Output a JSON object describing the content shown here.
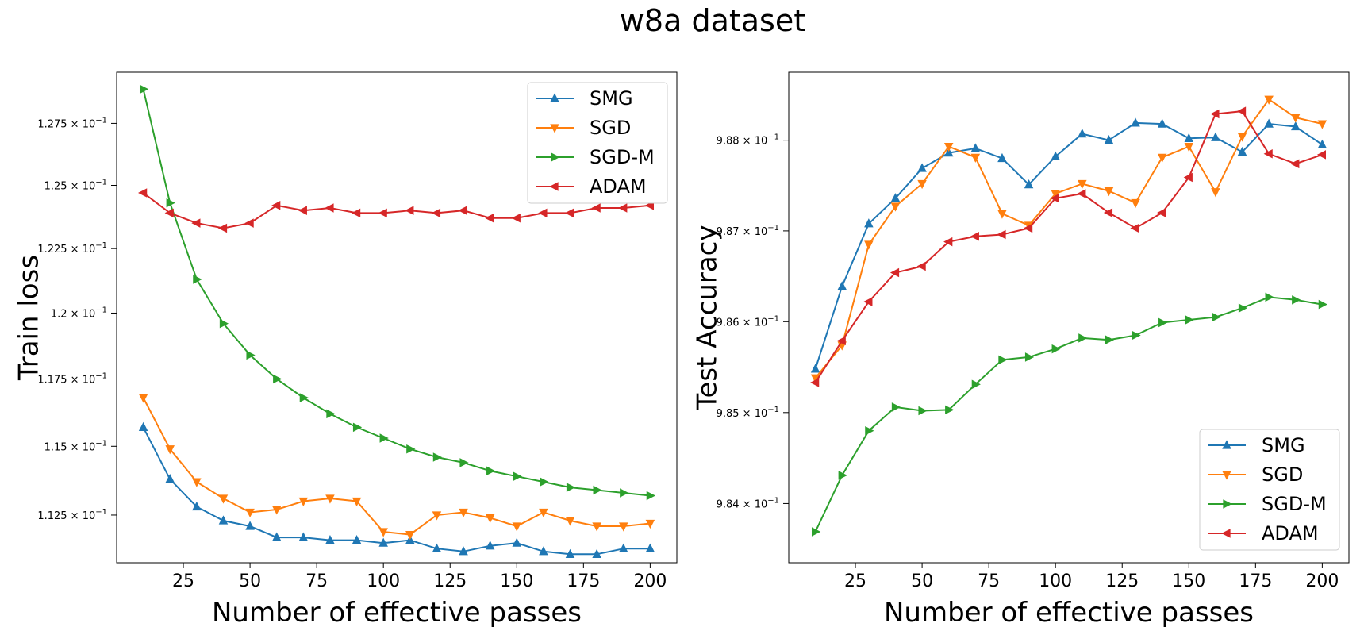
{
  "figure": {
    "suptitle": "w8a dataset"
  },
  "chart_data": [
    {
      "type": "line",
      "title": "",
      "xlabel": "Number of effective passes",
      "ylabel": "Train loss",
      "yscale": "log",
      "xlim": [
        0,
        210
      ],
      "ylim": [
        0.1108,
        0.1296
      ],
      "xticks": [
        25,
        50,
        75,
        100,
        125,
        150,
        175,
        200
      ],
      "xtick_labels": [
        "25",
        "50",
        "75",
        "100",
        "125",
        "150",
        "175",
        "200"
      ],
      "yticks": [
        0.1125,
        0.115,
        0.1175,
        0.12,
        0.1225,
        0.125,
        0.1275
      ],
      "ytick_labels": [
        "1.125",
        "1.15",
        "1.175",
        "1.2",
        "1.225",
        "1.25",
        "1.275"
      ],
      "ytick_suffix": "× 10",
      "ytick_exp": "−1",
      "grid": false,
      "legend_position": "upper right",
      "x": [
        10,
        20,
        30,
        40,
        50,
        60,
        70,
        80,
        90,
        100,
        110,
        120,
        130,
        140,
        150,
        160,
        170,
        180,
        190,
        200
      ],
      "series": [
        {
          "name": "SMG",
          "color": "#1f77b4",
          "marker": "triangle-up",
          "values": [
            0.1157,
            0.1138,
            0.1128,
            0.1123,
            0.1121,
            0.1117,
            0.1117,
            0.1116,
            0.1116,
            0.1115,
            0.1116,
            0.1113,
            0.1112,
            0.1114,
            0.1115,
            0.1112,
            0.1111,
            0.1111,
            0.1113,
            0.1113
          ]
        },
        {
          "name": "SGD",
          "color": "#ff7f0e",
          "marker": "triangle-down",
          "values": [
            0.1168,
            0.1149,
            0.1137,
            0.1131,
            0.1126,
            0.1127,
            0.113,
            0.1131,
            0.113,
            0.1119,
            0.1118,
            0.1125,
            0.1126,
            0.1124,
            0.1121,
            0.1126,
            0.1123,
            0.1121,
            0.1121,
            0.1122
          ]
        },
        {
          "name": "SGD-M",
          "color": "#2ca02c",
          "marker": "triangle-right",
          "values": [
            0.1289,
            0.1243,
            0.1213,
            0.1196,
            0.1184,
            0.1175,
            0.1168,
            0.1162,
            0.1157,
            0.1153,
            0.1149,
            0.1146,
            0.1144,
            0.1141,
            0.1139,
            0.1137,
            0.1135,
            0.1134,
            0.1133,
            0.1132
          ]
        },
        {
          "name": "ADAM",
          "color": "#d62728",
          "marker": "triangle-left",
          "values": [
            0.1247,
            0.1239,
            0.1235,
            0.1233,
            0.1235,
            0.1242,
            0.124,
            0.1241,
            0.1239,
            0.1239,
            0.124,
            0.1239,
            0.124,
            0.1237,
            0.1237,
            0.1239,
            0.1239,
            0.1241,
            0.1241,
            0.1242
          ]
        }
      ]
    },
    {
      "type": "line",
      "title": "",
      "xlabel": "Number of effective passes",
      "ylabel": "Test Accuracy",
      "yscale": "log",
      "xlim": [
        0,
        210
      ],
      "ylim": [
        0.98335,
        0.98875
      ],
      "xticks": [
        25,
        50,
        75,
        100,
        125,
        150,
        175,
        200
      ],
      "xtick_labels": [
        "25",
        "50",
        "75",
        "100",
        "125",
        "150",
        "175",
        "200"
      ],
      "yticks": [
        0.984,
        0.985,
        0.986,
        0.987,
        0.988
      ],
      "ytick_labels": [
        "9.84",
        "9.85",
        "9.86",
        "9.87",
        "9.88"
      ],
      "ytick_suffix": "× 10",
      "ytick_exp": "−1",
      "grid": false,
      "legend_position": "lower right",
      "x": [
        10,
        20,
        30,
        40,
        50,
        60,
        70,
        80,
        90,
        100,
        110,
        120,
        130,
        140,
        150,
        160,
        170,
        180,
        190,
        200
      ],
      "series": [
        {
          "name": "SMG",
          "color": "#1f77b4",
          "marker": "triangle-up",
          "values": [
            0.98548,
            0.98639,
            0.98708,
            0.98736,
            0.98769,
            0.98786,
            0.98791,
            0.9878,
            0.98751,
            0.98782,
            0.98807,
            0.988,
            0.98819,
            0.98818,
            0.98802,
            0.98803,
            0.98787,
            0.98818,
            0.98815,
            0.98795
          ]
        },
        {
          "name": "SGD",
          "color": "#ff7f0e",
          "marker": "triangle-down",
          "values": [
            0.98538,
            0.98574,
            0.98685,
            0.98727,
            0.98752,
            0.98793,
            0.98781,
            0.98719,
            0.98706,
            0.98741,
            0.98752,
            0.98744,
            0.98731,
            0.98781,
            0.98793,
            0.98743,
            0.98804,
            0.98845,
            0.98825,
            0.98818
          ]
        },
        {
          "name": "SGD-M",
          "color": "#2ca02c",
          "marker": "triangle-right",
          "values": [
            0.98369,
            0.98431,
            0.9848,
            0.98506,
            0.98502,
            0.98503,
            0.98531,
            0.98558,
            0.98561,
            0.9857,
            0.98582,
            0.9858,
            0.98585,
            0.98599,
            0.98602,
            0.98605,
            0.98615,
            0.98627,
            0.98624,
            0.98619
          ]
        },
        {
          "name": "ADAM",
          "color": "#d62728",
          "marker": "triangle-left",
          "values": [
            0.98533,
            0.98579,
            0.98622,
            0.98654,
            0.98661,
            0.98688,
            0.98694,
            0.98696,
            0.98703,
            0.98736,
            0.98741,
            0.9872,
            0.98703,
            0.9872,
            0.98759,
            0.98829,
            0.98832,
            0.98785,
            0.98774,
            0.98784
          ]
        }
      ]
    }
  ]
}
